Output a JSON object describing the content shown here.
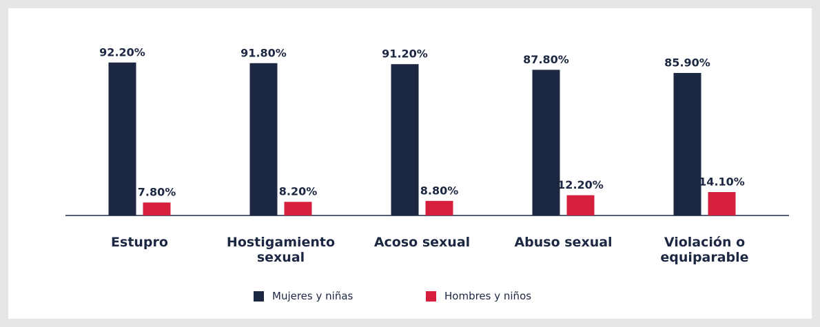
{
  "chart_data": {
    "type": "bar",
    "categories": [
      "Estupro",
      "Hostigamiento sexual",
      "Acoso sexual",
      "Abuso sexual",
      "Violación o equiparable"
    ],
    "series": [
      {
        "name": "Mujeres y niñas",
        "color": "#1c2742",
        "values": [
          92.2,
          91.8,
          91.2,
          87.8,
          85.9
        ],
        "value_labels": [
          "92.20%",
          "91.80%",
          "91.20%",
          "87.80%",
          "85.90%"
        ]
      },
      {
        "name": "Hombres y niños",
        "color": "#d61f3c",
        "values": [
          7.8,
          8.2,
          8.8,
          12.2,
          14.1
        ],
        "value_labels": [
          "7.80%",
          "8.20%",
          "8.80%",
          "12.20%",
          "14.10%"
        ]
      }
    ],
    "ylim": [
      0,
      100
    ],
    "legend": "bottom"
  }
}
